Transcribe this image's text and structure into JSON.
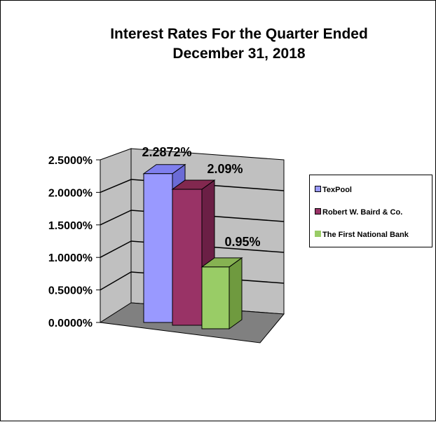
{
  "chart_data": {
    "type": "bar",
    "title": [
      "Interest Rates For the Quarter Ended",
      "December 31, 2018"
    ],
    "xlabel": "",
    "ylabel": "",
    "ylim": [
      0,
      2.5
    ],
    "y_tick_labels": [
      "0.0000%",
      "0.5000%",
      "1.0000%",
      "1.5000%",
      "2.0000%",
      "2.5000%"
    ],
    "grid": true,
    "legend_position": "right",
    "series": [
      {
        "name": "TexPool",
        "value": 2.2872,
        "label": "2.2872%",
        "color": "#9999ff",
        "side": "#6b6bd6",
        "top": "#7f7fee"
      },
      {
        "name": "Robert W. Baird & Co.",
        "value": 2.09,
        "label": "2.09%",
        "color": "#993366",
        "side": "#6b1f45",
        "top": "#82284f"
      },
      {
        "name": "The First National Bank",
        "value": 0.95,
        "label": "0.95%",
        "color": "#99cc66",
        "side": "#6f9a3f",
        "top": "#86b252"
      }
    ]
  }
}
